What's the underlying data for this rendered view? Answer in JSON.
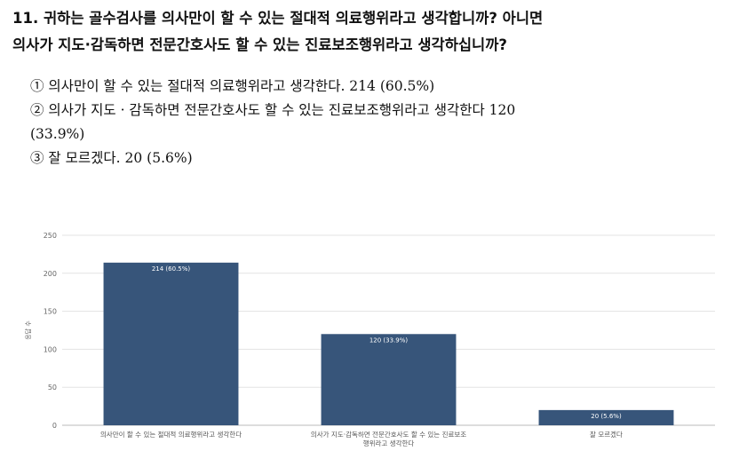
{
  "question": {
    "line1": "11. 귀하는 골수검사를 의사만이 할 수 있는 절대적 의료행위라고 생각합니까? 아니면",
    "line2": "의사가 지도·감독하면 전문간호사도 할 수 있는 진료보조행위라고 생각하십니까?"
  },
  "options": [
    {
      "line1": "① 의사만이 할 수 있는 절대적 의료행위라고 생각한다. 214 (60.5%)",
      "line2": ""
    },
    {
      "line1": "② 의사가 지도 · 감독하면 전문간호사도 할 수 있는 진료보조행위라고 생각한다 120",
      "line2": "(33.9%)"
    },
    {
      "line1": "③ 잘 모르겠다. 20 (5.6%)",
      "line2": ""
    }
  ],
  "chart_data": {
    "type": "bar",
    "ylabel": "응답 수",
    "ylim": [
      0,
      250
    ],
    "yticks": [
      0,
      50,
      100,
      150,
      200,
      250
    ],
    "categories": [
      [
        "의사만이 할 수 있는 절대적 의료행위라고 생각한다"
      ],
      [
        "의사가 지도·감독하면 전문간호사도 할 수 있는 진료보조",
        "행위라고 생각한다"
      ],
      [
        "잘 모르겠다"
      ]
    ],
    "values": [
      214,
      120,
      20
    ],
    "data_labels": [
      "214 (60.5%)",
      "120 (33.9%)",
      "20 (5.6%)"
    ],
    "bar_color": "#37557a",
    "grid": true
  }
}
